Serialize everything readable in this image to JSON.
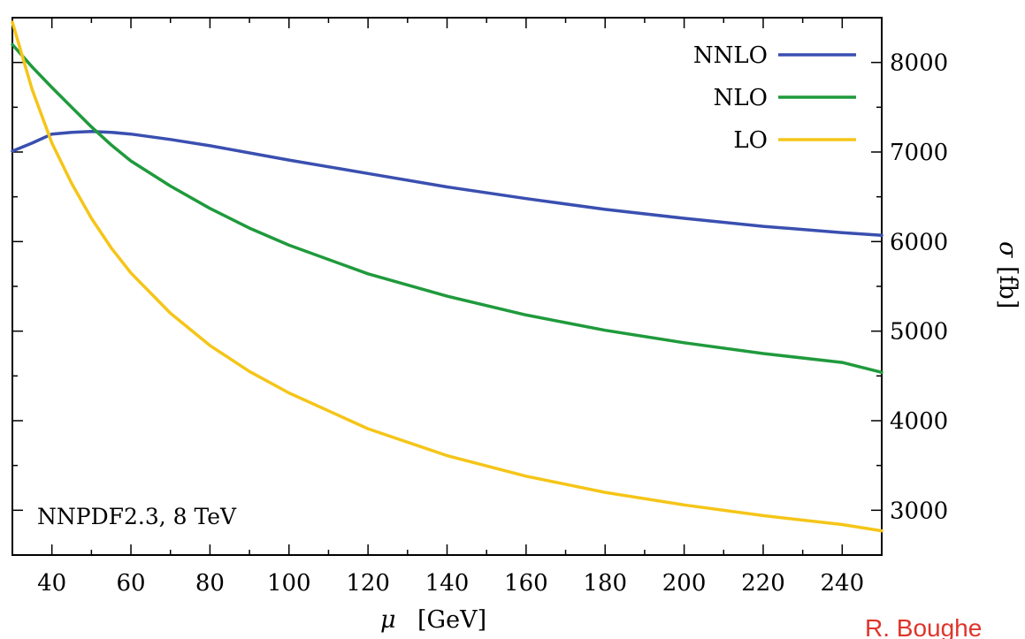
{
  "chart_data": {
    "type": "line",
    "xlabel_symbol": "μ",
    "xlabel_unit": "[GeV]",
    "ylabel_symbol": "σ",
    "ylabel_unit": "[fb]",
    "xlim": [
      30,
      250
    ],
    "ylim": [
      2500,
      8500
    ],
    "xticks": [
      40,
      60,
      80,
      100,
      120,
      140,
      160,
      180,
      200,
      220,
      240
    ],
    "yticks": [
      3000,
      4000,
      5000,
      6000,
      7000,
      8000
    ],
    "y_axis_side": "right",
    "legend_position": "top-right",
    "annotation": "NNPDF2.3, 8 TeV",
    "credit": "R. Boughe",
    "series": [
      {
        "name": "NNLO",
        "color": "#3a4fb0",
        "x": [
          30,
          35,
          40,
          45,
          50,
          55,
          60,
          70,
          80,
          90,
          100,
          120,
          140,
          160,
          180,
          200,
          220,
          240,
          250
        ],
        "values": [
          7010,
          7100,
          7200,
          7220,
          7230,
          7220,
          7200,
          7140,
          7070,
          6990,
          6910,
          6760,
          6610,
          6480,
          6360,
          6260,
          6170,
          6100,
          6070
        ]
      },
      {
        "name": "NLO",
        "color": "#1f9a3c",
        "x": [
          30,
          35,
          40,
          45,
          50,
          55,
          60,
          70,
          80,
          90,
          100,
          120,
          140,
          160,
          180,
          200,
          220,
          240,
          250
        ],
        "values": [
          8200,
          7950,
          7720,
          7500,
          7280,
          7080,
          6900,
          6620,
          6370,
          6150,
          5960,
          5640,
          5390,
          5180,
          5010,
          4870,
          4750,
          4650,
          4540
        ]
      },
      {
        "name": "LO",
        "color": "#f5c518",
        "x": [
          30,
          35,
          40,
          45,
          50,
          55,
          60,
          70,
          80,
          90,
          100,
          120,
          140,
          160,
          180,
          200,
          220,
          240,
          250
        ],
        "values": [
          8450,
          7700,
          7100,
          6650,
          6260,
          5930,
          5650,
          5200,
          4840,
          4550,
          4310,
          3910,
          3610,
          3380,
          3200,
          3060,
          2940,
          2840,
          2770
        ]
      }
    ]
  }
}
